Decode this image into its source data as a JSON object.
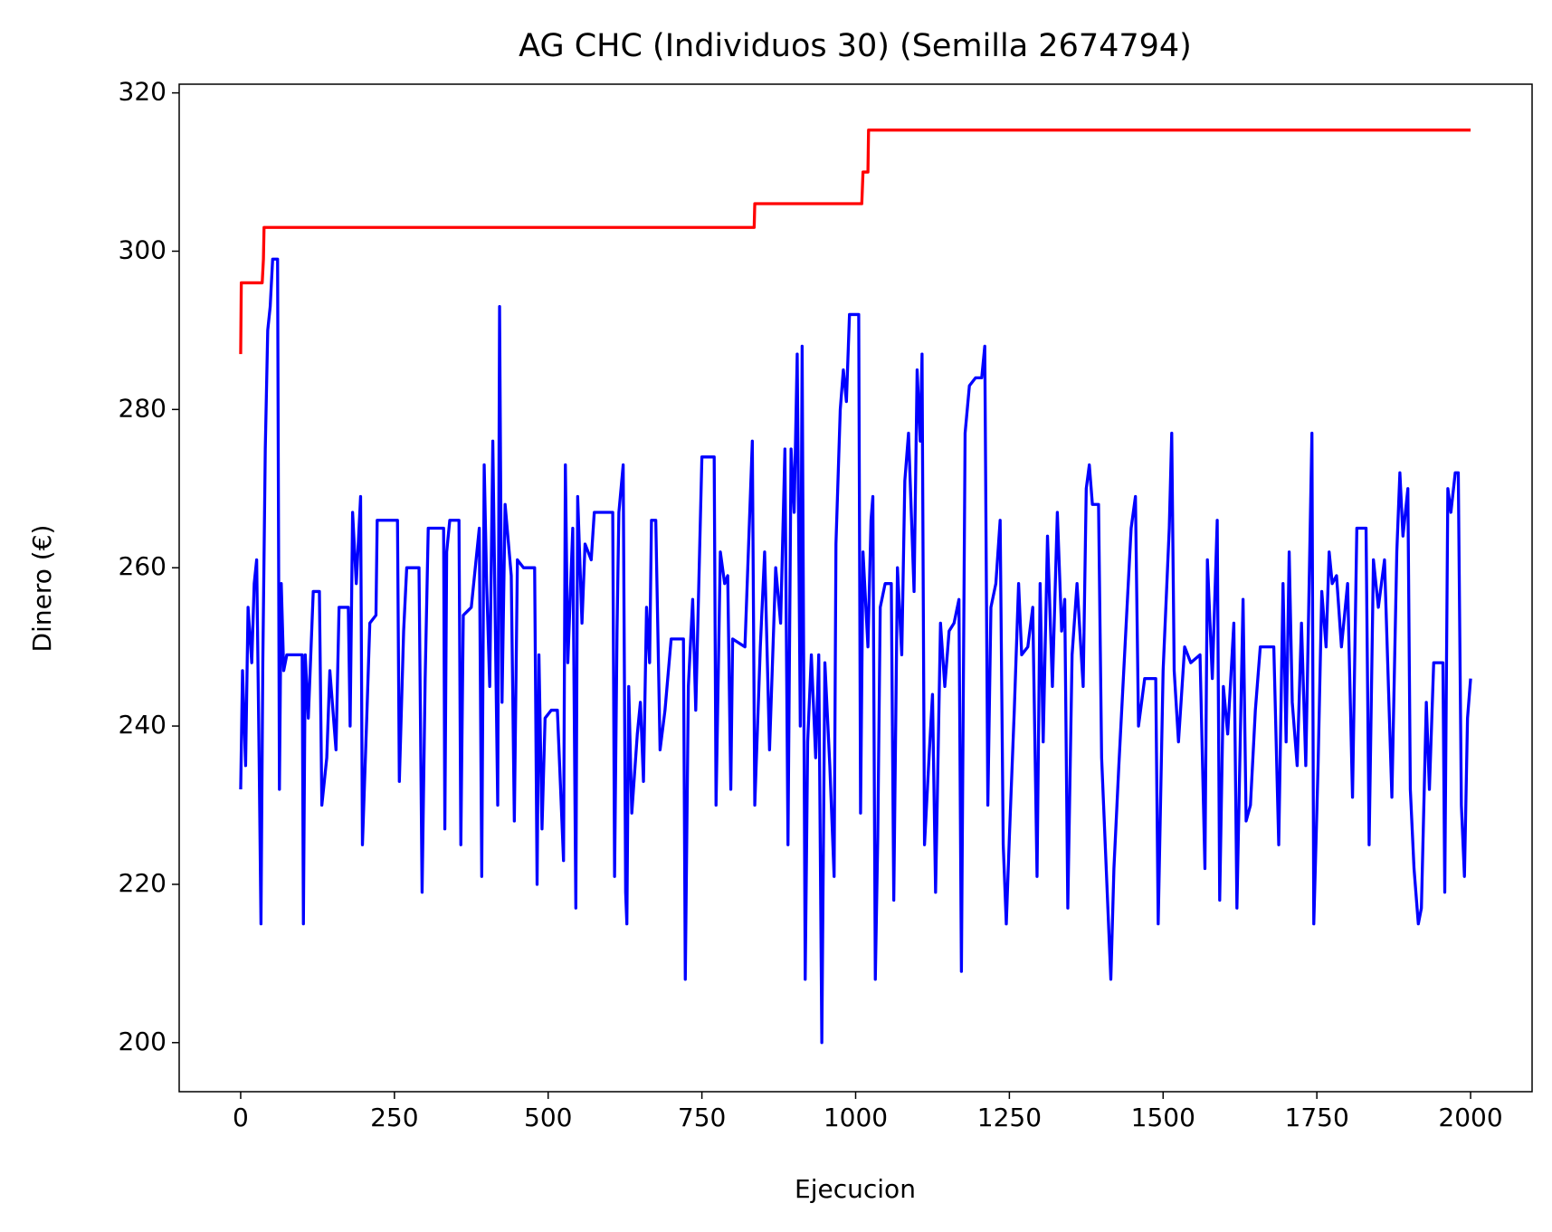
{
  "chart_data": {
    "type": "line",
    "title": "AG CHC (Individuos 30) (Semilla 2674794)",
    "xlabel": "Ejecucion",
    "ylabel": "Dinero (€)",
    "xlim": [
      -100,
      2100
    ],
    "ylim": [
      193.8,
      321.1
    ],
    "xticks": [
      0,
      250,
      500,
      750,
      1000,
      1250,
      1500,
      1750,
      2000
    ],
    "yticks": [
      200,
      220,
      240,
      260,
      280,
      300,
      320
    ],
    "series": [
      {
        "color": "#0000ff",
        "x": [
          0,
          3,
          8,
          12,
          18,
          22,
          26,
          30,
          33,
          36,
          40,
          44,
          48,
          52,
          60,
          63,
          66,
          70,
          75,
          100,
          102,
          105,
          110,
          118,
          128,
          132,
          140,
          145,
          155,
          160,
          175,
          178,
          182,
          188,
          195,
          198,
          205,
          210,
          220,
          222,
          255,
          258,
          265,
          270,
          290,
          295,
          300,
          305,
          330,
          332,
          335,
          340,
          355,
          358,
          362,
          375,
          388,
          392,
          396,
          400,
          405,
          410,
          418,
          421,
          425,
          430,
          440,
          445,
          450,
          460,
          478,
          482,
          485,
          490,
          495,
          505,
          515,
          525,
          528,
          532,
          540,
          545,
          548,
          555,
          560,
          570,
          575,
          605,
          608,
          612,
          615,
          622,
          626,
          628,
          631,
          636,
          645,
          650,
          655,
          660,
          665,
          668,
          675,
          682,
          690,
          700,
          720,
          723,
          728,
          735,
          740,
          750,
          770,
          773,
          780,
          787,
          792,
          797,
          800,
          820,
          832,
          836,
          845,
          852,
          860,
          870,
          878,
          885,
          890,
          895,
          900,
          905,
          910,
          913,
          918,
          922,
          928,
          935,
          940,
          945,
          950,
          958,
          965,
          968,
          975,
          980,
          985,
          990,
          1005,
          1008,
          1012,
          1020,
          1025,
          1028,
          1032,
          1036,
          1040,
          1048,
          1058,
          1062,
          1068,
          1075,
          1080,
          1086,
          1095,
          1100,
          1105,
          1108,
          1112,
          1120,
          1125,
          1130,
          1138,
          1145,
          1152,
          1160,
          1168,
          1172,
          1178,
          1185,
          1195,
          1205,
          1210,
          1215,
          1220,
          1228,
          1235,
          1240,
          1245,
          1250,
          1258,
          1265,
          1270,
          1280,
          1288,
          1295,
          1300,
          1305,
          1312,
          1320,
          1328,
          1335,
          1340,
          1345,
          1352,
          1360,
          1370,
          1375,
          1380,
          1385,
          1395,
          1400,
          1415,
          1420,
          1428,
          1440,
          1448,
          1455,
          1460,
          1470,
          1488,
          1492,
          1500,
          1510,
          1514,
          1518,
          1525,
          1535,
          1545,
          1560,
          1568,
          1572,
          1580,
          1588,
          1592,
          1598,
          1605,
          1615,
          1620,
          1630,
          1635,
          1642,
          1650,
          1658,
          1680,
          1688,
          1695,
          1700,
          1705,
          1710,
          1718,
          1725,
          1732,
          1742,
          1745,
          1752,
          1758,
          1765,
          1770,
          1775,
          1782,
          1790,
          1800,
          1808,
          1815,
          1830,
          1835,
          1842,
          1850,
          1860,
          1872,
          1880,
          1885,
          1890,
          1898,
          1902,
          1908,
          1915,
          1920,
          1928,
          1933,
          1940,
          1955,
          1958,
          1963,
          1968,
          1975,
          1980,
          1985,
          1990,
          1995,
          2000
        ],
        "values": [
          232,
          247,
          235,
          255,
          248,
          258,
          261,
          236,
          215,
          248,
          275,
          290,
          293,
          299,
          299,
          232,
          258,
          247,
          249,
          249,
          215,
          249,
          241,
          257,
          257,
          230,
          236,
          247,
          237,
          255,
          255,
          240,
          267,
          258,
          269,
          225,
          241,
          253,
          254,
          266,
          266,
          233,
          252,
          260,
          260,
          219,
          246,
          265,
          265,
          227,
          262,
          266,
          266,
          225,
          254,
          255,
          265,
          221,
          273,
          258,
          245,
          276,
          230,
          293,
          243,
          268,
          259,
          228,
          261,
          260,
          260,
          220,
          249,
          227,
          241,
          242,
          242,
          223,
          273,
          248,
          265,
          217,
          269,
          253,
          263,
          261,
          267,
          267,
          221,
          252,
          267,
          273,
          219,
          215,
          245,
          229,
          239,
          243,
          233,
          255,
          248,
          266,
          266,
          237,
          242,
          251,
          251,
          208,
          245,
          256,
          242,
          274,
          274,
          230,
          262,
          258,
          259,
          232,
          251,
          250,
          276,
          230,
          250,
          262,
          237,
          260,
          253,
          275,
          225,
          275,
          267,
          287,
          240,
          288,
          208,
          238,
          249,
          236,
          249,
          200,
          248,
          235,
          221,
          263,
          280,
          285,
          281,
          292,
          292,
          229,
          262,
          250,
          266,
          269,
          208,
          226,
          255,
          258,
          258,
          218,
          260,
          249,
          271,
          277,
          257,
          285,
          276,
          287,
          225,
          237,
          244,
          219,
          253,
          245,
          252,
          253,
          256,
          209,
          277,
          283,
          284,
          284,
          288,
          230,
          255,
          258,
          266,
          225,
          215,
          226,
          242,
          258,
          249,
          250,
          255,
          221,
          258,
          238,
          264,
          245,
          267,
          252,
          256,
          217,
          249,
          258,
          245,
          270,
          273,
          268,
          268,
          236,
          208,
          222,
          235,
          253,
          265,
          269,
          240,
          246,
          246,
          215,
          247,
          265,
          277,
          247,
          238,
          250,
          248,
          249,
          222,
          261,
          246,
          266,
          218,
          245,
          239,
          253,
          217,
          256,
          228,
          230,
          242,
          250,
          250,
          225,
          258,
          238,
          262,
          243,
          235,
          253,
          235,
          277,
          215,
          235,
          257,
          250,
          262,
          258,
          259,
          250,
          258,
          231,
          265,
          265,
          225,
          261,
          255,
          261,
          231,
          262,
          272,
          264,
          270,
          232,
          222,
          215,
          217,
          243,
          232,
          248,
          248,
          219,
          270,
          267,
          272,
          272,
          230,
          221,
          241,
          246
        ]
      },
      {
        "color": "#ff0000",
        "x": [
          0,
          1,
          35,
          37,
          38,
          835,
          836,
          1010,
          1012,
          1020,
          1021,
          2000
        ],
        "values": [
          287,
          296,
          296,
          299,
          303,
          303,
          306,
          306,
          310,
          310,
          315.3,
          315.3
        ]
      }
    ]
  }
}
